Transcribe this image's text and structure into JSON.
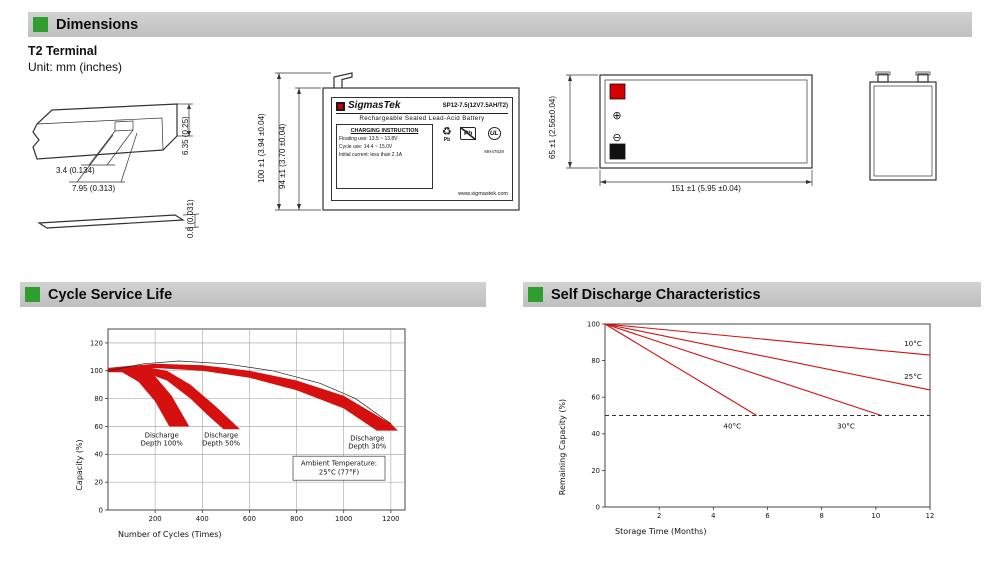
{
  "page": {
    "bg": "#ffffff",
    "accent_green": "#2f9e2f",
    "bar_gray": "#c6c6c6",
    "chart_red": "#d60f0f"
  },
  "headers": {
    "dimensions": "Dimensions",
    "cycle": "Cycle Service Life",
    "self_discharge": "Self Discharge Characteristics"
  },
  "dimensions": {
    "terminal_type": "T2 Terminal",
    "unit": "Unit: mm (inches)",
    "terminal_detail": {
      "slot_width": "3.4 (0.134)",
      "tab_width": "7.95 (0.313)",
      "tab_height": "6.35 (0.25)",
      "thickness": "0.8 (0.031)"
    },
    "front_view": {
      "height_total": "100 ±1 (3.94 ±0.04)",
      "height_case": "94 ±1 (3.70 ±0.04)",
      "brand": "SigmasTek",
      "model": "SP12-7.5(12V7.5AH/T2)",
      "subtitle": "Rechargeable Sealed Lead-Acid Battery",
      "charging_title": "CHARGING INSTRUCTION",
      "charging_line1": "Floating use: 13.5 ~ 13.8V",
      "charging_line2": "Cycle use: 14.4 ~ 15.0V",
      "charging_line3": "Initial current: less than 2.1A",
      "pb": "Pb",
      "ul_mark": "UL",
      "ul_code": "MH47629",
      "website": "www.sigmastek.com"
    },
    "top_view": {
      "depth": "65 ±1 (2.56±0.04)",
      "length": "151 ±1 (5.95 ±0.04)",
      "plus_symbol": "⊕",
      "minus_symbol": "⊖"
    }
  },
  "chart_data": [
    {
      "id": "cycle-chart",
      "type": "area",
      "title": "Cycle Service Life",
      "xlabel": "Number of Cycles (Times)",
      "ylabel": "Capacity (%)",
      "xlim": [
        0,
        1260
      ],
      "ylim": [
        0,
        130
      ],
      "xticks": [
        200,
        400,
        600,
        800,
        1000,
        1200
      ],
      "yticks": [
        0,
        20,
        40,
        60,
        80,
        100,
        120
      ],
      "grid": true,
      "band_color": "#d60f0f",
      "bands": [
        {
          "name": "Discharge Depth 100%",
          "upper": [
            [
              0,
              101
            ],
            [
              60,
              103
            ],
            [
              130,
              103
            ],
            [
              200,
              96
            ],
            [
              270,
              82
            ],
            [
              345,
              60
            ]
          ],
          "lower": [
            [
              0,
              99
            ],
            [
              60,
              99
            ],
            [
              130,
              92
            ],
            [
              200,
              78
            ],
            [
              260,
              60
            ]
          ]
        },
        {
          "name": "Discharge Depth 50%",
          "upper": [
            [
              0,
              102
            ],
            [
              120,
              104
            ],
            [
              250,
              100
            ],
            [
              350,
              90
            ],
            [
              460,
              74
            ],
            [
              560,
              58
            ]
          ],
          "lower": [
            [
              0,
              100
            ],
            [
              120,
              101
            ],
            [
              250,
              93
            ],
            [
              350,
              80
            ],
            [
              430,
              67
            ],
            [
              490,
              58
            ]
          ]
        },
        {
          "name": "Discharge Depth 30%",
          "upper": [
            [
              0,
              102
            ],
            [
              200,
              105
            ],
            [
              400,
              104
            ],
            [
              600,
              100
            ],
            [
              800,
              93
            ],
            [
              1000,
              82
            ],
            [
              1200,
              62
            ],
            [
              1230,
              57
            ]
          ],
          "lower": [
            [
              0,
              100
            ],
            [
              200,
              102
            ],
            [
              400,
              100
            ],
            [
              600,
              95
            ],
            [
              800,
              86
            ],
            [
              1000,
              73
            ],
            [
              1140,
              57
            ]
          ]
        }
      ],
      "envelope": [
        [
          0,
          100
        ],
        [
          150,
          105
        ],
        [
          300,
          107
        ],
        [
          500,
          105
        ],
        [
          700,
          100
        ],
        [
          900,
          91
        ],
        [
          1050,
          80
        ],
        [
          1200,
          62
        ]
      ],
      "labels": [
        {
          "text": "Discharge\nDepth 100%",
          "x": 228,
          "y": 52
        },
        {
          "text": "Discharge\nDepth 50%",
          "x": 480,
          "y": 52
        },
        {
          "text": "Discharge\nDepth 30%",
          "x": 1100,
          "y": 50
        }
      ],
      "note": {
        "text": "Ambient Temperature:\n25°C (77°F)",
        "x": 980,
        "y": 30
      }
    },
    {
      "id": "self-discharge-chart",
      "type": "line",
      "title": "Self Discharge Characteristics",
      "xlabel": "Storage Time (Months)",
      "ylabel": "Remaining Capacity (%)",
      "xlim": [
        0,
        12
      ],
      "ylim": [
        0,
        100
      ],
      "xticks": [
        2,
        4,
        6,
        8,
        10,
        12
      ],
      "yticks": [
        0,
        20,
        40,
        60,
        80,
        100
      ],
      "grid": false,
      "line_color": "#d60f0f",
      "series": [
        {
          "name": "10°C",
          "points": [
            [
              0,
              100
            ],
            [
              12,
              83
            ]
          ],
          "label_at": [
            11.7,
            88
          ],
          "label_anchor": "end"
        },
        {
          "name": "25°C",
          "points": [
            [
              0,
              100
            ],
            [
              12,
              64
            ]
          ],
          "label_at": [
            11.7,
            70
          ],
          "label_anchor": "end"
        },
        {
          "name": "30°C",
          "points": [
            [
              0,
              100
            ],
            [
              10.2,
              50
            ]
          ],
          "label_at": [
            8.9,
            43
          ],
          "label_anchor": "middle"
        },
        {
          "name": "40°C",
          "points": [
            [
              0,
              100
            ],
            [
              5.6,
              50
            ]
          ],
          "label_at": [
            4.7,
            43
          ],
          "label_anchor": "middle"
        }
      ],
      "dashed_guide_y": 50
    }
  ]
}
